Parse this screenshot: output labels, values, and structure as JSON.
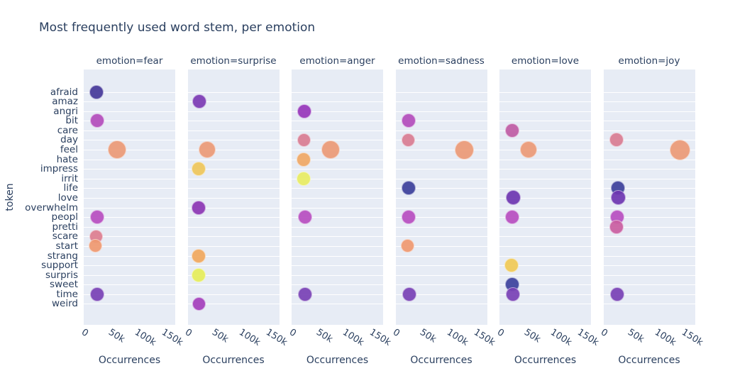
{
  "title": "Most frequently used word stem, per emotion",
  "y_axis": {
    "title": "token",
    "categories": [
      "afraid",
      "amaz",
      "angri",
      "bit",
      "care",
      "day",
      "feel",
      "hate",
      "impress",
      "irrit",
      "life",
      "love",
      "overwhelm",
      "peopl",
      "pretti",
      "scare",
      "start",
      "strang",
      "support",
      "surpris",
      "sweet",
      "time",
      "weird"
    ]
  },
  "x_axis": {
    "title": "Occurrences",
    "tick_labels": [
      "0",
      "50k",
      "100k",
      "150k"
    ],
    "tick_values": [
      0,
      50000,
      100000,
      150000
    ],
    "range": [
      -10000,
      160000
    ]
  },
  "colors": {
    "plot_background": "#e7ecf5",
    "gridline": "#ffffff",
    "text": "#2a3f5f",
    "token_colors": {
      "afraid": "#473a9a",
      "amaz": "#7d3cb5",
      "angri": "#9838bb",
      "bit": "#b44ebc",
      "care": "#c05da5",
      "day": "#da7e94",
      "feel": "#ec9b78",
      "hate": "#f0a966",
      "impress": "#efc75c",
      "irrit": "#e9ed64",
      "life": "#3e419c",
      "love": "#6f38b2",
      "overwhelm": "#8d38b5",
      "peopl": "#b850c1",
      "pretti": "#cb60a2",
      "scare": "#de7f90",
      "start": "#f09a71",
      "strang": "#f1a95f",
      "support": "#f1ca56",
      "surpris": "#e6ee5c",
      "sweet": "#3f449e",
      "time": "#7a43b6",
      "weird": "#a540bd"
    }
  },
  "chart_data": {
    "type": "scatter",
    "title": "Most frequently used word stem, per emotion",
    "xlabel": "Occurrences",
    "ylabel": "token",
    "xlim": [
      -10000,
      160000
    ],
    "grid": "horizontal-only",
    "legend_position": "none",
    "facets": [
      {
        "label": "emotion=fear",
        "points": [
          {
            "token": "afraid",
            "value": 14000,
            "size": 20
          },
          {
            "token": "bit",
            "value": 15000,
            "size": 20
          },
          {
            "token": "feel",
            "value": 52000,
            "size": 26
          },
          {
            "token": "peopl",
            "value": 15000,
            "size": 20
          },
          {
            "token": "scare",
            "value": 13000,
            "size": 19
          },
          {
            "token": "start",
            "value": 12000,
            "size": 19
          },
          {
            "token": "time",
            "value": 15000,
            "size": 20
          }
        ]
      },
      {
        "label": "emotion=surprise",
        "points": [
          {
            "token": "amaz",
            "value": 12000,
            "size": 20
          },
          {
            "token": "feel",
            "value": 26000,
            "size": 24
          },
          {
            "token": "impress",
            "value": 11000,
            "size": 20
          },
          {
            "token": "overwhelm",
            "value": 11000,
            "size": 20
          },
          {
            "token": "strang",
            "value": 11000,
            "size": 20
          },
          {
            "token": "surpris",
            "value": 11000,
            "size": 20
          },
          {
            "token": "weird",
            "value": 11000,
            "size": 19
          }
        ]
      },
      {
        "label": "emotion=anger",
        "points": [
          {
            "token": "angri",
            "value": 14000,
            "size": 20
          },
          {
            "token": "day",
            "value": 13000,
            "size": 19
          },
          {
            "token": "feel",
            "value": 62000,
            "size": 26
          },
          {
            "token": "hate",
            "value": 13000,
            "size": 20
          },
          {
            "token": "irrit",
            "value": 12000,
            "size": 20
          },
          {
            "token": "peopl",
            "value": 15000,
            "size": 20
          },
          {
            "token": "time",
            "value": 15000,
            "size": 20
          }
        ]
      },
      {
        "label": "emotion=sadness",
        "points": [
          {
            "token": "bit",
            "value": 15000,
            "size": 20
          },
          {
            "token": "day",
            "value": 14000,
            "size": 19
          },
          {
            "token": "feel",
            "value": 118000,
            "size": 27
          },
          {
            "token": "life",
            "value": 14000,
            "size": 20
          },
          {
            "token": "peopl",
            "value": 15000,
            "size": 20
          },
          {
            "token": "start",
            "value": 12000,
            "size": 19
          },
          {
            "token": "time",
            "value": 16000,
            "size": 20
          }
        ]
      },
      {
        "label": "emotion=love",
        "points": [
          {
            "token": "care",
            "value": 14000,
            "size": 20
          },
          {
            "token": "feel",
            "value": 44000,
            "size": 24
          },
          {
            "token": "love",
            "value": 16000,
            "size": 21
          },
          {
            "token": "peopl",
            "value": 14000,
            "size": 20
          },
          {
            "token": "support",
            "value": 12000,
            "size": 20
          },
          {
            "token": "sweet",
            "value": 14000,
            "size": 20
          },
          {
            "token": "time",
            "value": 15000,
            "size": 20
          }
        ]
      },
      {
        "label": "emotion=joy",
        "points": [
          {
            "token": "day",
            "value": 15000,
            "size": 20
          },
          {
            "token": "feel",
            "value": 132000,
            "size": 29
          },
          {
            "token": "life",
            "value": 17000,
            "size": 20
          },
          {
            "token": "love",
            "value": 18000,
            "size": 21
          },
          {
            "token": "peopl",
            "value": 16000,
            "size": 20
          },
          {
            "token": "pretti",
            "value": 15000,
            "size": 20
          },
          {
            "token": "time",
            "value": 16000,
            "size": 20
          }
        ]
      }
    ]
  }
}
